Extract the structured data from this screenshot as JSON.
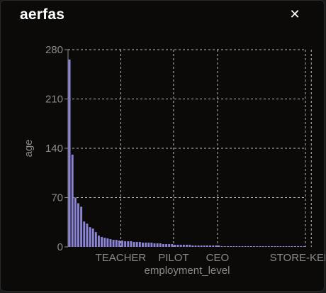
{
  "dialog": {
    "title": "aerfas",
    "close_icon": "close-icon",
    "close_glyph": "✕"
  },
  "chart_data": {
    "type": "bar",
    "xlabel": "employment_level",
    "ylabel": "age",
    "ylim": [
      0,
      280
    ],
    "yticks": [
      0,
      70,
      140,
      210,
      280
    ],
    "xtick_labels": [
      "TEACHER",
      "PILOT",
      "CEO",
      "STORE-KEEPER"
    ],
    "grid": true,
    "bar_color": "#8b83d6",
    "values": [
      266,
      131,
      70,
      62,
      57,
      36,
      33,
      28,
      26,
      21,
      16,
      14,
      13,
      12,
      11,
      10,
      10,
      9,
      9,
      8,
      8,
      8,
      7,
      7,
      7,
      6,
      6,
      6,
      6,
      5,
      5,
      5,
      4,
      4,
      4,
      4,
      3,
      3,
      3,
      3,
      3,
      3,
      2,
      2,
      2,
      2,
      2,
      2,
      2,
      2,
      2,
      2,
      1,
      1,
      1,
      1,
      1,
      1,
      1,
      1,
      1,
      1,
      1,
      1,
      1,
      1,
      1,
      1,
      1,
      1,
      1,
      1,
      1,
      1,
      1,
      1,
      1,
      1,
      1,
      1,
      1
    ],
    "xtick_positions": [
      18,
      36,
      51,
      83
    ]
  }
}
